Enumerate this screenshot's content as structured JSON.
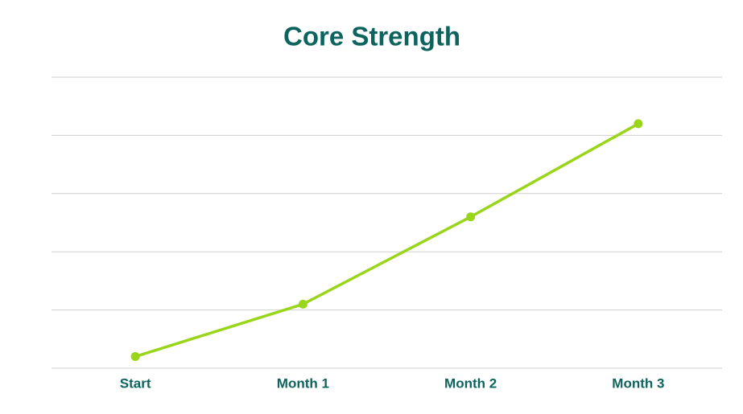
{
  "chart_data": {
    "type": "line",
    "title": "Core Strength",
    "categories": [
      "Start",
      "Month 1",
      "Month 2",
      "Month 3"
    ],
    "values": [
      4,
      22,
      52,
      84
    ],
    "color": "#99d619",
    "ylim": [
      0,
      100
    ],
    "yticks": [
      0,
      20,
      40,
      60,
      80,
      100
    ],
    "grid": true
  }
}
